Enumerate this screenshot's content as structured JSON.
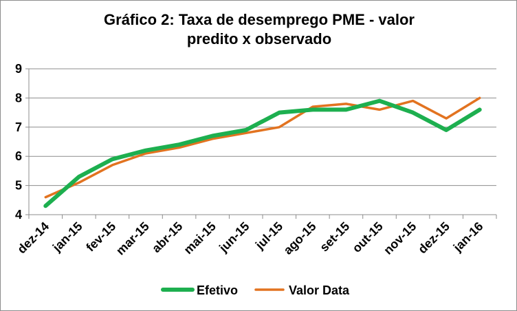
{
  "chart_data": {
    "type": "line",
    "title_line1": "Gráfico 2: Taxa de desemprego PME - valor",
    "title_line2": "predito x observado",
    "categories": [
      "dez-14",
      "jan-15",
      "fev-15",
      "mar-15",
      "abr-15",
      "mai-15",
      "jun-15",
      "jul-15",
      "ago-15",
      "set-15",
      "out-15",
      "nov-15",
      "dez-15",
      "jan-16"
    ],
    "series": [
      {
        "name": "Efetivo",
        "color": "#1daf4f",
        "values": [
          4.3,
          5.3,
          5.9,
          6.2,
          6.4,
          6.7,
          6.9,
          7.5,
          7.6,
          7.6,
          7.9,
          7.5,
          6.9,
          7.6
        ]
      },
      {
        "name": "Valor Data",
        "color": "#e27320",
        "values": [
          4.6,
          5.1,
          5.7,
          6.1,
          6.3,
          6.6,
          6.8,
          7.0,
          7.7,
          7.8,
          7.6,
          7.9,
          7.3,
          8.0
        ]
      }
    ],
    "yticks": [
      "4",
      "5",
      "6",
      "7",
      "8",
      "9"
    ],
    "ylim": [
      4,
      9
    ],
    "grid": true,
    "legend_position": "bottom"
  }
}
